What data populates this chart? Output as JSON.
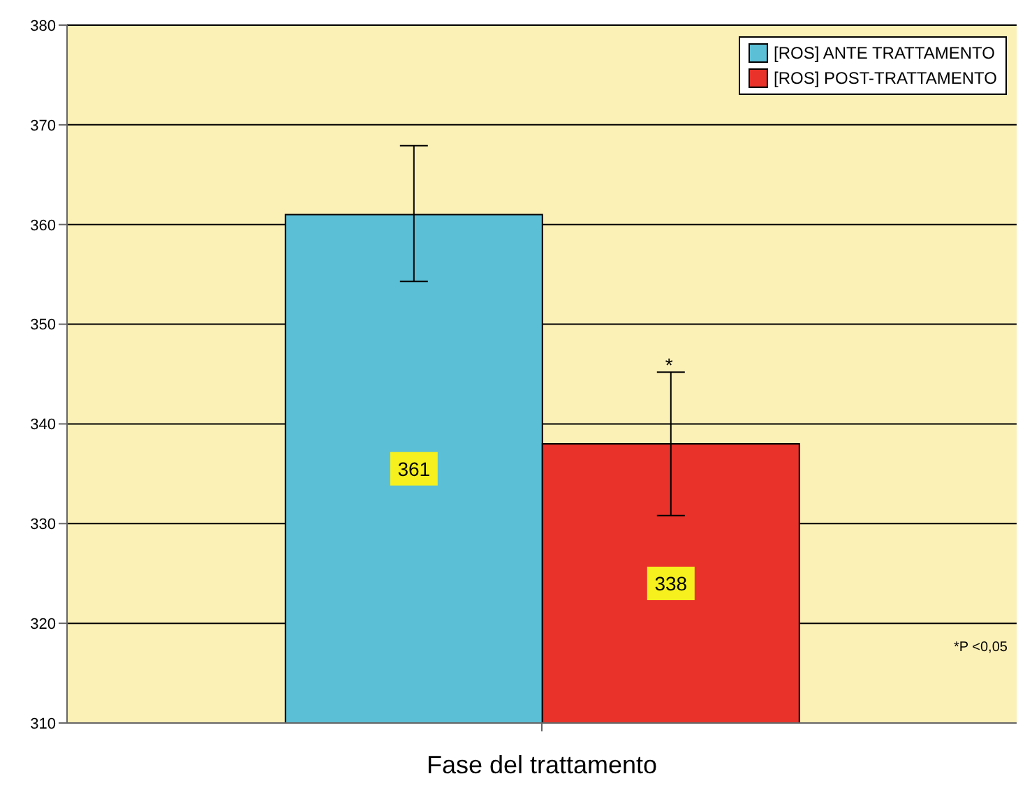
{
  "chart_data": {
    "type": "bar",
    "xlabel": "Fase del trattamento",
    "categories": [
      null
    ],
    "series": [
      {
        "name": "[ROS] ANTE TRATTAMENTO",
        "color": "#5bbfd6",
        "values": [
          361
        ],
        "errors": [
          [
            354.3,
            367.9
          ]
        ]
      },
      {
        "name": "[ROS] POST-TRATTAMENTO",
        "color": "#e8322a",
        "values": [
          338
        ],
        "errors": [
          [
            330.8,
            345.2
          ]
        ]
      }
    ],
    "ylim": [
      310,
      380
    ],
    "yticks": [
      310,
      320,
      330,
      340,
      350,
      360,
      370,
      380
    ],
    "grid": "y",
    "legend": "top right",
    "data_labels": true,
    "annotations": [
      "*",
      "*P <0,05"
    ]
  }
}
